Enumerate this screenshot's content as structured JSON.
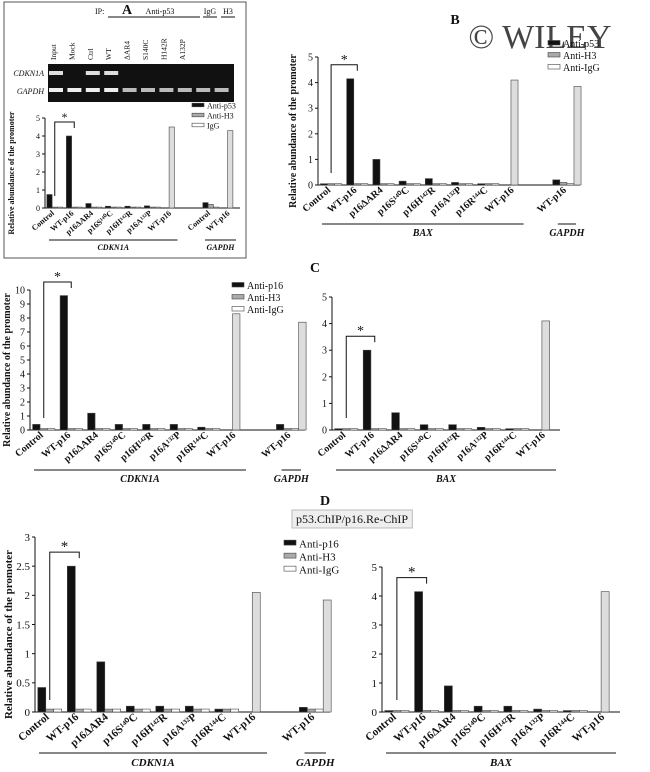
{
  "watermark": "© WILEY",
  "panels": [
    "A",
    "B",
    "C",
    "D"
  ],
  "gel": {
    "ip_label": "IP:",
    "antibodies": [
      "Anti-p53",
      "IgG",
      "H3"
    ],
    "lanes": [
      "Input",
      "Mock",
      "Ctrl",
      "WT",
      "ΔAR4",
      "S140C",
      "H142R",
      "A132P"
    ],
    "rows": [
      "CDKN1A",
      "GAPDH"
    ]
  },
  "chart_data": [
    {
      "type": "bar",
      "ylabel": "Relative abundance of the promoter",
      "annotation": "*",
      "categories": [
        "Control",
        "WT-p16",
        "p16ΔAR4",
        "p16S¹⁴⁰C",
        "p16H¹⁴²R",
        "p16A¹³²P",
        "WT-p16",
        null,
        "Control",
        "WT-p16"
      ],
      "groups": [
        "CDKN1A",
        "GAPDH"
      ],
      "series": [
        {
          "name": "Anti-p53",
          "color": "#111111",
          "values": [
            0.75,
            4.0,
            0.25,
            0.1,
            0.1,
            0.12,
            null,
            null,
            0.3,
            null
          ]
        },
        {
          "name": "Anti-H3",
          "color": "#aaaaaa",
          "values": [
            0.05,
            0.05,
            0.05,
            0.05,
            0.05,
            0.05,
            null,
            null,
            0.2,
            null
          ]
        },
        {
          "name": "IgG",
          "color": "#ffffff",
          "values": [
            0.05,
            0.05,
            0.05,
            0.05,
            0.05,
            0.05,
            null,
            null,
            0.05,
            null
          ]
        },
        {
          "color": "#dddddd",
          "values": [
            null,
            null,
            null,
            null,
            null,
            null,
            4.5,
            null,
            null,
            4.3
          ]
        }
      ],
      "ylim": [
        0,
        5
      ],
      "yticks": [
        0,
        1,
        2,
        3,
        4,
        5
      ]
    },
    {
      "type": "bar",
      "ylabel": "Relative abundance of the promoter",
      "annotation": "*",
      "categories": [
        "Control",
        "WT-p16",
        "p16ΔAR4",
        "p16S¹⁴⁰C",
        "p16H¹⁴²R",
        "p16A¹³²P",
        "p16R¹⁴⁴C",
        "WT-p16",
        null,
        "WT-p16"
      ],
      "groups": [
        "BAX",
        "GAPDH"
      ],
      "series": [
        {
          "name": "Anti-p53",
          "color": "#111111",
          "values": [
            0.05,
            4.15,
            1.0,
            0.15,
            0.25,
            0.1,
            0.05,
            null,
            null,
            0.2
          ]
        },
        {
          "name": "Anti-H3",
          "color": "#aaaaaa",
          "values": [
            0.05,
            0.05,
            0.05,
            0.05,
            0.05,
            0.05,
            0.05,
            null,
            null,
            0.1
          ]
        },
        {
          "name": "Anti-IgG",
          "color": "#ffffff",
          "values": [
            0.05,
            0.05,
            0.05,
            0.05,
            0.05,
            0.05,
            0.05,
            null,
            null,
            0.05
          ]
        },
        {
          "color": "#dddddd",
          "values": [
            null,
            null,
            null,
            null,
            null,
            null,
            null,
            4.1,
            null,
            3.85
          ]
        }
      ],
      "ylim": [
        0,
        5
      ],
      "yticks": [
        0,
        1,
        2,
        3,
        4,
        5
      ]
    },
    {
      "type": "bar",
      "ylabel": "Relative abundance of the promoter",
      "annotation": "*",
      "categories": [
        "Control",
        "WT-p16",
        "p16ΔAR4",
        "p16S¹⁴⁰C",
        "p16H¹⁴²R",
        "p16A¹³²P",
        "p16R¹⁴⁴C",
        "WT-p16",
        null,
        "WT-p16"
      ],
      "groups": [
        "CDKN1A",
        "GAPDH"
      ],
      "series": [
        {
          "name": "Anti-p16",
          "color": "#111111",
          "values": [
            0.4,
            9.6,
            1.2,
            0.4,
            0.4,
            0.4,
            0.2,
            null,
            null,
            0.4
          ]
        },
        {
          "name": "Anti-H3",
          "color": "#aaaaaa",
          "values": [
            0.1,
            0.1,
            0.1,
            0.1,
            0.1,
            0.1,
            0.1,
            null,
            null,
            0.1
          ]
        },
        {
          "name": "Anti-IgG",
          "color": "#ffffff",
          "values": [
            0.1,
            0.1,
            0.1,
            0.1,
            0.1,
            0.1,
            0.1,
            null,
            null,
            0.1
          ]
        },
        {
          "color": "#dddddd",
          "values": [
            null,
            null,
            null,
            null,
            null,
            null,
            null,
            8.3,
            null,
            7.7
          ]
        }
      ],
      "ylim": [
        0,
        10
      ],
      "yticks": [
        0,
        1,
        2,
        3,
        4,
        5,
        6,
        7,
        8,
        9,
        10
      ]
    },
    {
      "type": "bar",
      "annotation": "*",
      "categories": [
        "Control",
        "WT-p16",
        "p16ΔAR4",
        "p16S¹⁴⁰C",
        "p16H¹⁴²R",
        "p16A¹³²P",
        "p16R¹⁴⁴C",
        "WT-p16"
      ],
      "groups": [
        "BAX"
      ],
      "series": [
        {
          "color": "#111111",
          "values": [
            0.05,
            3.0,
            0.65,
            0.2,
            0.2,
            0.1,
            0.05,
            null
          ]
        },
        {
          "color": "#aaaaaa",
          "values": [
            0.05,
            0.05,
            0.05,
            0.05,
            0.05,
            0.05,
            0.05,
            null
          ]
        },
        {
          "color": "#ffffff",
          "values": [
            0.05,
            0.05,
            0.05,
            0.05,
            0.05,
            0.05,
            0.05,
            null
          ]
        },
        {
          "color": "#dddddd",
          "values": [
            null,
            null,
            null,
            null,
            null,
            null,
            null,
            4.1
          ]
        }
      ],
      "ylim": [
        0,
        5
      ],
      "yticks": [
        0,
        1,
        2,
        3,
        4,
        5
      ]
    },
    {
      "type": "bar",
      "subtitle": "p53.ChIP/p16.Re-ChIP",
      "ylabel": "Relative abundance of the promoter",
      "annotation": "*",
      "categories": [
        "Control",
        "WT-p16",
        "p16ΔAR4",
        "p16S¹⁴⁰C",
        "p16H¹⁴²R",
        "p16A¹³²P",
        "p16R¹⁴⁴C",
        "WT-p16",
        null,
        "WT-p16"
      ],
      "groups": [
        "CDKN1A",
        "GAPDH"
      ],
      "series": [
        {
          "name": "Anti-p16",
          "color": "#111111",
          "values": [
            0.42,
            2.5,
            0.86,
            0.1,
            0.1,
            0.1,
            0.05,
            null,
            null,
            0.08
          ]
        },
        {
          "name": "Anti-H3",
          "color": "#aaaaaa",
          "values": [
            0.05,
            0.05,
            0.05,
            0.05,
            0.05,
            0.05,
            0.05,
            null,
            null,
            0.05
          ]
        },
        {
          "name": "Anti-IgG",
          "color": "#ffffff",
          "values": [
            0.05,
            0.05,
            0.05,
            0.05,
            0.05,
            0.05,
            0.05,
            null,
            null,
            0.05
          ]
        },
        {
          "color": "#dddddd",
          "values": [
            null,
            null,
            null,
            null,
            null,
            null,
            null,
            2.05,
            null,
            1.92
          ]
        }
      ],
      "ylim": [
        0,
        3
      ],
      "yticks": [
        0,
        0.5,
        1,
        1.5,
        2,
        2.5,
        3
      ]
    },
    {
      "type": "bar",
      "annotation": "*",
      "categories": [
        "Control",
        "WT-p16",
        "p16ΔAR4",
        "p16S¹⁴⁰C",
        "p16H¹⁴²R",
        "p16A¹³²P",
        "p16R¹⁴⁴C",
        "WT-p16"
      ],
      "groups": [
        "BAX"
      ],
      "series": [
        {
          "color": "#111111",
          "values": [
            0.05,
            4.15,
            0.9,
            0.2,
            0.2,
            0.1,
            0.05,
            null
          ]
        },
        {
          "color": "#aaaaaa",
          "values": [
            0.05,
            0.05,
            0.05,
            0.05,
            0.05,
            0.05,
            0.05,
            null
          ]
        },
        {
          "color": "#ffffff",
          "values": [
            0.05,
            0.05,
            0.05,
            0.05,
            0.05,
            0.05,
            0.05,
            null
          ]
        },
        {
          "color": "#dddddd",
          "values": [
            null,
            null,
            null,
            null,
            null,
            null,
            null,
            4.15
          ]
        }
      ],
      "ylim": [
        0,
        5
      ],
      "yticks": [
        0,
        1,
        2,
        3,
        4,
        5
      ]
    }
  ]
}
